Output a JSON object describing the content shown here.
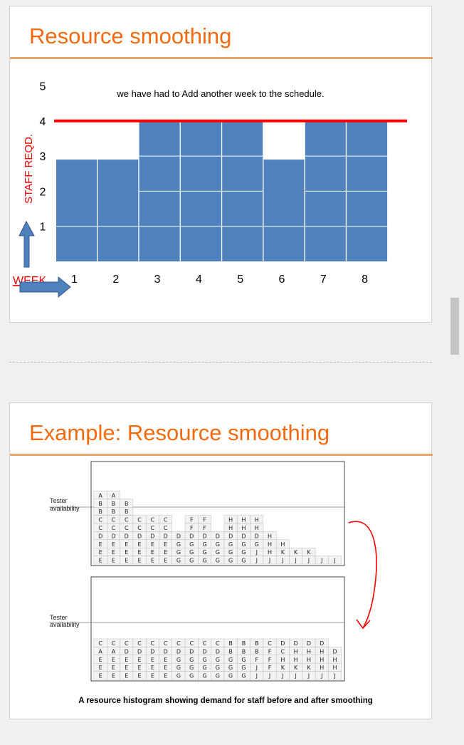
{
  "slides": [
    {
      "title": "Resource smoothing",
      "chart_data": {
        "type": "bar",
        "title": "we have had to Add another week to the schedule.",
        "ylabel": "STAFF REQD.",
        "xlabel": "WEEK",
        "categories": [
          "1",
          "2",
          "3",
          "4",
          "5",
          "6",
          "7",
          "8"
        ],
        "values": [
          2.9,
          2.9,
          4,
          4,
          4,
          2.9,
          4,
          4
        ],
        "y_ticks": [
          "1",
          "2",
          "3",
          "4",
          "5"
        ],
        "ylim": [
          0,
          5
        ],
        "limit_line": 4,
        "bar_color": "#4f81bd",
        "limit_color": "#ff0000",
        "label_color": "#ff0000"
      }
    },
    {
      "title": "Example: Resource smoothing",
      "before": {
        "label_lines": [
          "Tester",
          "availability"
        ],
        "rows": [
          "A A",
          "B B B",
          "B B B",
          "C C C C C C _ F F _ H H H",
          "C C C C C C _ F F _ H H H",
          "D D D D D D D D D D D D D H",
          "E E E E E E G G G G G G G H H",
          "E E E E E E G G G G G G J H K K K",
          "E E E E E E G G G G G G J J J J J J J"
        ]
      },
      "after": {
        "label_lines": [
          "Tester",
          "availability"
        ],
        "rows": [
          "C C C C C C C C C C B B B C D D D D",
          "A A D D D D D D D D B B B F C H H H D",
          "E E E E E E G G G G G G F F H H H H H",
          "E E E E E E G G G G G G J F K K K H H",
          "E E E E E E G G G G G G J J J J J J J"
        ]
      },
      "caption": "A resource histogram showing demand for staff before and after smoothing",
      "arrow_color": "#ff0000"
    }
  ]
}
